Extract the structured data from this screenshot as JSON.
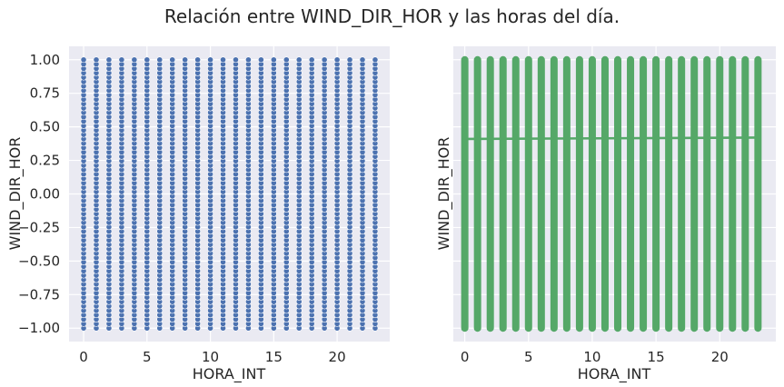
{
  "title": "Relación entre WIND_DIR_HOR y las horas del día.",
  "chart_data": [
    {
      "type": "scatter",
      "xlabel": "HORA_INT",
      "ylabel": "WIND_DIR_HOR",
      "xlim": [
        -1.15,
        24.15
      ],
      "ylim": [
        -1.1,
        1.1
      ],
      "xticks": [
        0,
        5,
        10,
        15,
        20
      ],
      "yticks": [
        -1.0,
        -0.75,
        -0.5,
        -0.25,
        0.0,
        0.25,
        0.5,
        0.75,
        1.0
      ],
      "ytick_labels": [
        "−1.00",
        "−0.75",
        "−0.50",
        "−0.25",
        "0.00",
        "0.25",
        "0.50",
        "0.75",
        "1.00"
      ],
      "x_values": [
        0,
        1,
        2,
        3,
        4,
        5,
        6,
        7,
        8,
        9,
        10,
        11,
        12,
        13,
        14,
        15,
        16,
        17,
        18,
        19,
        20,
        21,
        22,
        23
      ],
      "y_range_per_x": [
        -1.0,
        1.0
      ],
      "color": "#4c72b0",
      "grid": true
    },
    {
      "type": "scatter",
      "xlabel": "HORA_INT",
      "ylabel": "WIND_DIR_HOR",
      "xlim": [
        -0.9,
        24.4
      ],
      "ylim": [
        -1.1,
        1.1
      ],
      "xticks": [
        0,
        5,
        10,
        15,
        20
      ],
      "x_values": [
        0,
        1,
        2,
        3,
        4,
        5,
        6,
        7,
        8,
        9,
        10,
        11,
        12,
        13,
        14,
        15,
        16,
        17,
        18,
        19,
        20,
        21,
        22,
        23
      ],
      "y_range_per_x": [
        -1.0,
        1.0
      ],
      "regression_line": {
        "x": [
          0,
          23
        ],
        "y": [
          0.41,
          0.42
        ]
      },
      "color": "#55a868",
      "grid": true
    }
  ]
}
